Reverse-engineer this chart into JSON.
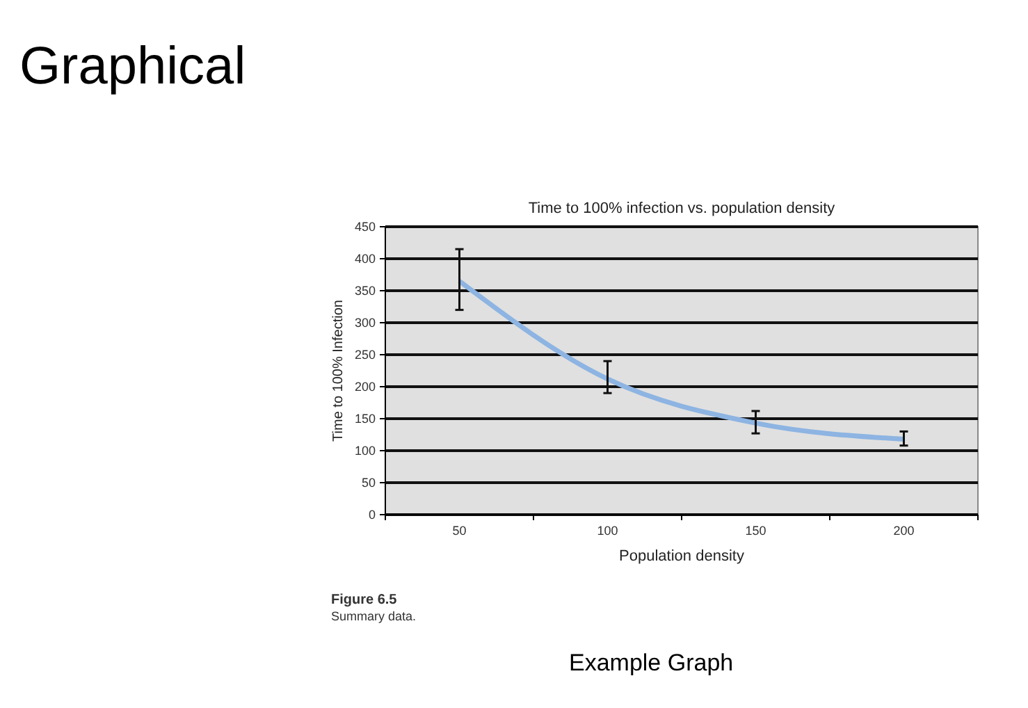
{
  "chart_data": {
    "type": "line",
    "title": "Time to 100% infection vs. population density",
    "xlabel": "Population density",
    "ylabel": "Time to 100% Infection",
    "categories": [
      "50",
      "100",
      "150",
      "200"
    ],
    "series": [
      {
        "color": "#8db4e2",
        "values": [
          365,
          212,
          143,
          118
        ],
        "errors": [
          [
            320,
            415
          ],
          [
            190,
            240
          ],
          [
            127,
            162
          ],
          [
            108,
            130
          ]
        ]
      }
    ],
    "ylim": [
      0,
      450
    ],
    "yticks": [
      0,
      50,
      100,
      150,
      200,
      250,
      300,
      350,
      400,
      450
    ],
    "grid": "y",
    "annotations": [
      "Graphical",
      "Figure 6.5",
      "Summary data.",
      "Example Graph"
    ]
  }
}
